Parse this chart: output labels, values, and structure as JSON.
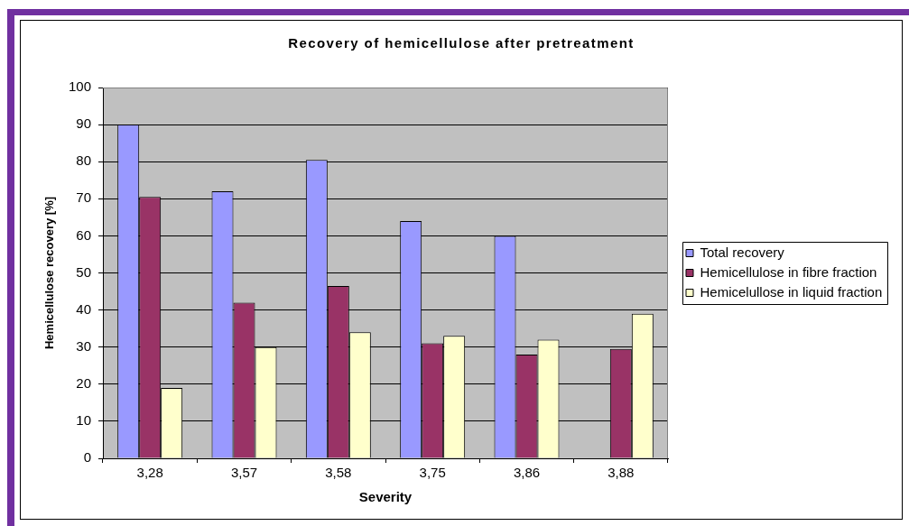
{
  "chart_data": {
    "type": "bar",
    "title": "Recovery of hemicellulose after pretreatment",
    "xlabel": "Severity",
    "ylabel": "Hemicellulose recovery [%]",
    "categories": [
      "3,28",
      "3,57",
      "3,58",
      "3,75",
      "3,86",
      "3,88"
    ],
    "series": [
      {
        "name": "Total recovery",
        "color": "#9999ff",
        "values": [
          90,
          72,
          80.5,
          64,
          60,
          null
        ]
      },
      {
        "name": "Hemicellulose in fibre fraction",
        "color": "#993366",
        "values": [
          70.5,
          42,
          46.5,
          31,
          28,
          29.5
        ]
      },
      {
        "name": "Hemicelullose in liquid fraction",
        "color": "#ffffcc",
        "values": [
          19,
          30,
          34,
          33,
          32,
          39
        ]
      }
    ],
    "ylim": [
      0,
      100
    ],
    "yticks": [
      0,
      10,
      20,
      30,
      40,
      50,
      60,
      70,
      80,
      90,
      100
    ],
    "grid": "y",
    "legend": "right"
  }
}
